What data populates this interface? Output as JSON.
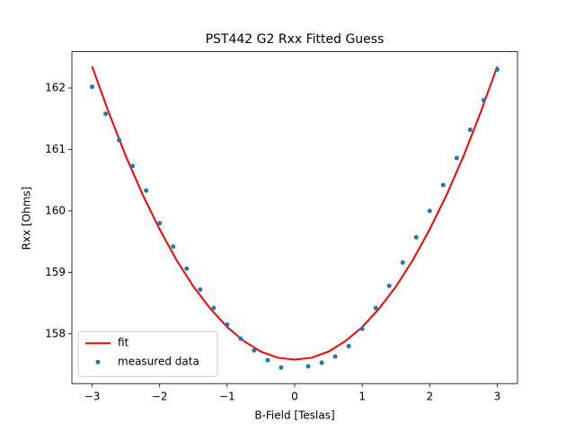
{
  "chart_data": {
    "type": "line_scatter",
    "title": "PST442 G2 Rxx Fitted Guess",
    "x_label": "B-Field [Teslas]",
    "y_label": "Rxx [Ohms]",
    "xlim": [
      -3.3,
      3.3
    ],
    "ylim": [
      157.19,
      162.59
    ],
    "xticks": [
      {
        "value": -3,
        "label": "−3"
      },
      {
        "value": -2,
        "label": "−2"
      },
      {
        "value": -1,
        "label": "−1"
      },
      0,
      1,
      2,
      3
    ],
    "yticks": [
      158,
      159,
      160,
      161,
      162
    ],
    "legend": "lower left",
    "series": [
      {
        "name": " fit",
        "kind": "line",
        "color": "#ff0000",
        "x": [
          -3,
          -2.75,
          -2.5,
          -2.25,
          -2,
          -1.75,
          -1.5,
          -1.25,
          -1,
          -0.75,
          -0.5,
          -0.25,
          0,
          0.25,
          0.5,
          0.75,
          1,
          1.25,
          1.5,
          1.75,
          2,
          2.25,
          2.5,
          2.75,
          3
        ],
        "values": [
          162.35,
          161.59,
          160.89,
          160.26,
          159.7,
          159.2,
          158.77,
          158.41,
          158.11,
          157.88,
          157.71,
          157.61,
          157.58,
          157.61,
          157.71,
          157.88,
          158.11,
          158.41,
          158.77,
          159.2,
          159.7,
          160.26,
          160.89,
          161.59,
          162.35
        ]
      },
      {
        "name": "measured data",
        "kind": "scatter",
        "color": "#1f77b4",
        "x": [
          -3.0,
          -2.8,
          -2.6,
          -2.4,
          -2.2,
          -2.0,
          -1.8,
          -1.6,
          -1.4,
          -1.2,
          -1.0,
          -0.8,
          -0.6,
          -0.4,
          -0.2,
          0.2,
          0.4,
          0.6,
          0.8,
          1.0,
          1.2,
          1.4,
          1.6,
          1.8,
          2.0,
          2.2,
          2.4,
          2.6,
          2.8,
          3.0
        ],
        "values": [
          162.02,
          161.58,
          161.15,
          160.73,
          160.33,
          159.8,
          159.42,
          159.06,
          158.72,
          158.42,
          158.15,
          157.92,
          157.73,
          157.57,
          157.45,
          157.47,
          157.53,
          157.63,
          157.8,
          158.08,
          158.42,
          158.78,
          159.16,
          159.57,
          160.0,
          160.42,
          160.86,
          161.32,
          161.8,
          162.3
        ]
      }
    ]
  }
}
